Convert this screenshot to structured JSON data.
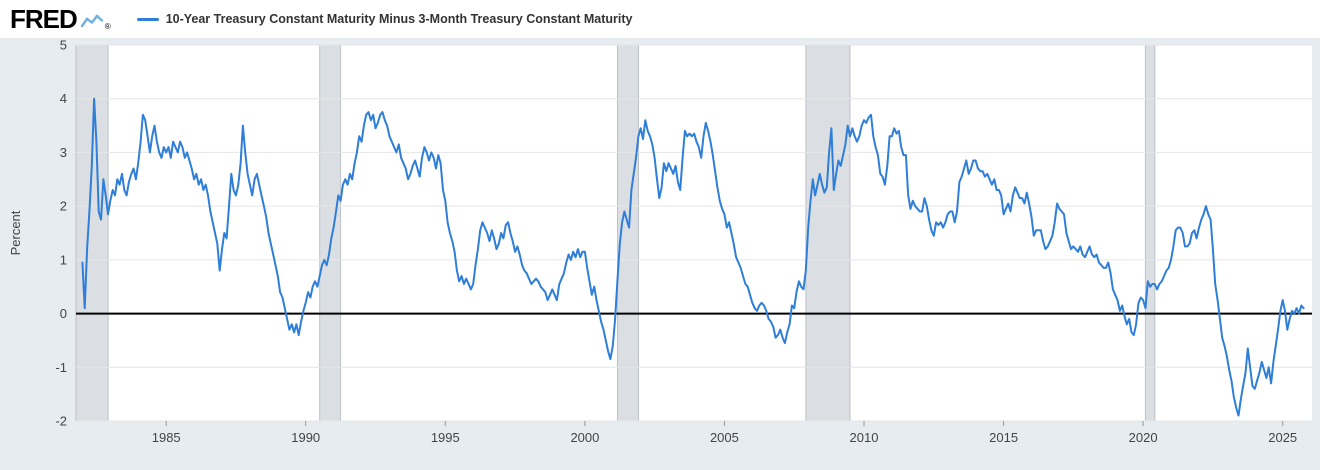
{
  "header": {
    "logo_text": "FRED",
    "registered_mark": "®",
    "legend": {
      "series_label": "10-Year Treasury Constant Maturity Minus 3-Month Treasury Constant Maturity",
      "series_color": "#2f7ed8"
    }
  },
  "chart_data": {
    "type": "line",
    "title": "10-Year Treasury Constant Maturity Minus 3-Month Treasury Constant Maturity",
    "xlabel": "",
    "ylabel": "Percent",
    "ylim": [
      -2,
      5
    ],
    "xlim": [
      1981.77,
      2026.05
    ],
    "y_ticks": [
      5,
      4,
      3,
      2,
      1,
      0,
      -1,
      -2
    ],
    "x_ticks": [
      1985,
      1990,
      1995,
      2000,
      2005,
      2010,
      2015,
      2020,
      2025
    ],
    "grid": "horizontal",
    "zero_line": true,
    "legend_position": "top-left",
    "recessions": [
      [
        1981.77,
        1982.92
      ],
      [
        1990.5,
        1991.25
      ],
      [
        2001.17,
        2001.92
      ],
      [
        2007.92,
        2009.5
      ],
      [
        2020.08,
        2020.42
      ]
    ],
    "colors": {
      "line": "#2f7ed8",
      "plot_bg": "#ffffff",
      "outer_bg": "#e6ecf0",
      "gridline": "#e6e6e6",
      "zero_line": "#000000",
      "recession": "#dbdfe3",
      "recession_edge": "#bcc2c8",
      "tick": "#999999"
    },
    "x_start": 1982.0,
    "points_per_year": 12,
    "values": [
      0.95,
      0.1,
      1.2,
      1.9,
      2.7,
      4.0,
      3.2,
      1.9,
      1.75,
      2.5,
      2.2,
      1.85,
      2.1,
      2.3,
      2.2,
      2.5,
      2.4,
      2.6,
      2.3,
      2.2,
      2.45,
      2.6,
      2.7,
      2.5,
      2.8,
      3.2,
      3.7,
      3.6,
      3.3,
      3.0,
      3.3,
      3.5,
      3.2,
      3.0,
      2.9,
      3.1,
      3.0,
      3.1,
      2.9,
      3.2,
      3.1,
      3.0,
      3.2,
      3.1,
      2.9,
      3.0,
      2.85,
      2.7,
      2.5,
      2.6,
      2.4,
      2.5,
      2.3,
      2.4,
      2.2,
      1.9,
      1.7,
      1.5,
      1.3,
      0.8,
      1.2,
      1.5,
      1.4,
      2.0,
      2.6,
      2.3,
      2.2,
      2.4,
      2.8,
      3.5,
      3.0,
      2.6,
      2.4,
      2.2,
      2.5,
      2.6,
      2.4,
      2.2,
      2.0,
      1.8,
      1.5,
      1.3,
      1.1,
      0.9,
      0.7,
      0.4,
      0.3,
      0.1,
      -0.1,
      -0.3,
      -0.2,
      -0.35,
      -0.2,
      -0.4,
      -0.15,
      0.05,
      0.2,
      0.4,
      0.3,
      0.5,
      0.6,
      0.5,
      0.7,
      0.9,
      1.0,
      0.9,
      1.1,
      1.4,
      1.6,
      1.9,
      2.2,
      2.1,
      2.4,
      2.5,
      2.4,
      2.6,
      2.5,
      2.8,
      3.0,
      3.3,
      3.2,
      3.5,
      3.7,
      3.75,
      3.6,
      3.7,
      3.45,
      3.55,
      3.7,
      3.75,
      3.6,
      3.5,
      3.3,
      3.2,
      3.1,
      3.0,
      3.15,
      2.9,
      2.8,
      2.7,
      2.5,
      2.6,
      2.75,
      2.85,
      2.7,
      2.55,
      2.9,
      3.1,
      3.0,
      2.85,
      3.0,
      2.9,
      2.7,
      2.95,
      2.8,
      2.3,
      2.1,
      1.7,
      1.5,
      1.35,
      1.15,
      0.8,
      0.6,
      0.7,
      0.55,
      0.65,
      0.55,
      0.45,
      0.55,
      0.9,
      1.2,
      1.55,
      1.7,
      1.6,
      1.5,
      1.35,
      1.55,
      1.4,
      1.2,
      1.3,
      1.5,
      1.4,
      1.65,
      1.7,
      1.5,
      1.35,
      1.15,
      1.25,
      1.1,
      0.9,
      0.8,
      0.75,
      0.65,
      0.55,
      0.6,
      0.65,
      0.6,
      0.5,
      0.45,
      0.4,
      0.25,
      0.35,
      0.45,
      0.35,
      0.25,
      0.55,
      0.65,
      0.75,
      0.95,
      1.1,
      1.0,
      1.15,
      1.05,
      1.2,
      1.05,
      1.15,
      1.15,
      0.85,
      0.6,
      0.35,
      0.5,
      0.25,
      0.05,
      -0.15,
      -0.3,
      -0.5,
      -0.7,
      -0.85,
      -0.6,
      -0.1,
      0.6,
      1.3,
      1.7,
      1.9,
      1.75,
      1.6,
      2.3,
      2.6,
      2.9,
      3.3,
      3.45,
      3.25,
      3.6,
      3.4,
      3.3,
      3.15,
      2.9,
      2.5,
      2.15,
      2.35,
      2.8,
      2.65,
      2.8,
      2.7,
      2.6,
      2.75,
      2.45,
      2.3,
      2.9,
      3.4,
      3.3,
      3.35,
      3.3,
      3.35,
      3.2,
      3.1,
      2.9,
      3.3,
      3.55,
      3.4,
      3.2,
      2.95,
      2.65,
      2.35,
      2.1,
      1.95,
      1.85,
      1.6,
      1.7,
      1.5,
      1.3,
      1.05,
      0.95,
      0.85,
      0.7,
      0.55,
      0.5,
      0.35,
      0.2,
      0.1,
      0.05,
      0.15,
      0.2,
      0.15,
      0.05,
      -0.1,
      -0.15,
      -0.25,
      -0.45,
      -0.4,
      -0.3,
      -0.45,
      -0.55,
      -0.35,
      -0.2,
      0.15,
      0.1,
      0.4,
      0.6,
      0.5,
      0.45,
      0.8,
      1.6,
      2.1,
      2.5,
      2.2,
      2.4,
      2.6,
      2.4,
      2.25,
      2.35,
      3.0,
      3.45,
      2.3,
      2.6,
      2.85,
      2.75,
      2.95,
      3.15,
      3.5,
      3.3,
      3.45,
      3.3,
      3.2,
      3.3,
      3.5,
      3.6,
      3.55,
      3.65,
      3.7,
      3.3,
      3.1,
      2.95,
      2.6,
      2.55,
      2.4,
      2.75,
      3.3,
      3.3,
      3.45,
      3.35,
      3.4,
      3.1,
      2.95,
      2.95,
      2.2,
      1.95,
      2.1,
      2.0,
      1.95,
      1.9,
      1.9,
      2.15,
      2.0,
      1.75,
      1.55,
      1.45,
      1.7,
      1.65,
      1.7,
      1.6,
      1.7,
      1.85,
      1.9,
      1.9,
      1.7,
      1.9,
      2.45,
      2.55,
      2.7,
      2.85,
      2.6,
      2.7,
      2.85,
      2.85,
      2.7,
      2.65,
      2.65,
      2.55,
      2.6,
      2.5,
      2.4,
      2.5,
      2.3,
      2.3,
      2.2,
      1.85,
      1.95,
      2.05,
      1.9,
      2.2,
      2.35,
      2.25,
      2.15,
      2.15,
      2.05,
      2.25,
      2.05,
      1.8,
      1.45,
      1.55,
      1.55,
      1.55,
      1.35,
      1.2,
      1.25,
      1.35,
      1.45,
      1.7,
      2.05,
      1.95,
      1.9,
      1.85,
      1.5,
      1.35,
      1.2,
      1.25,
      1.2,
      1.15,
      1.25,
      1.1,
      1.05,
      1.15,
      1.25,
      1.1,
      1.05,
      1.1,
      0.95,
      0.9,
      0.85,
      0.85,
      0.95,
      0.75,
      0.45,
      0.35,
      0.25,
      0.05,
      0.15,
      -0.05,
      -0.2,
      -0.1,
      -0.35,
      -0.4,
      -0.2,
      0.2,
      0.3,
      0.25,
      0.1,
      0.6,
      0.5,
      0.55,
      0.55,
      0.45,
      0.55,
      0.6,
      0.7,
      0.8,
      0.85,
      1.0,
      1.25,
      1.55,
      1.6,
      1.6,
      1.5,
      1.25,
      1.25,
      1.3,
      1.5,
      1.55,
      1.4,
      1.6,
      1.75,
      1.85,
      2.0,
      1.85,
      1.75,
      1.2,
      0.55,
      0.25,
      -0.1,
      -0.45,
      -0.6,
      -0.8,
      -1.05,
      -1.25,
      -1.55,
      -1.75,
      -1.9,
      -1.6,
      -1.35,
      -1.1,
      -0.65,
      -1.0,
      -1.35,
      -1.4,
      -1.25,
      -1.1,
      -0.9,
      -1.05,
      -1.2,
      -1.0,
      -1.3,
      -0.9,
      -0.6,
      -0.3,
      0.05,
      0.25,
      0.05,
      -0.3,
      -0.1,
      0.05,
      0.0,
      0.1,
      0.0,
      0.15,
      0.1
    ]
  }
}
